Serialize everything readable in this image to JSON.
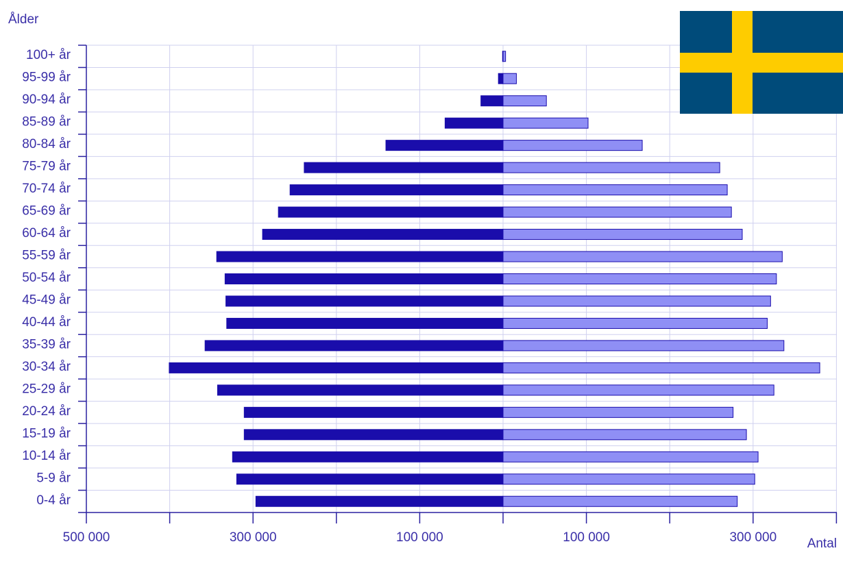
{
  "chart_data": {
    "type": "bar",
    "orientation": "horizontal",
    "subtype": "population-pyramid",
    "ylabel": "Ålder",
    "xlabel": "Antal",
    "categories": [
      "0-4 år",
      "5-9 år",
      "10-14 år",
      "15-19 år",
      "20-24 år",
      "25-29 år",
      "30-34 år",
      "35-39 år",
      "40-44 år",
      "45-49 år",
      "50-54 år",
      "55-59 år",
      "60-64 år",
      "65-69 år",
      "70-74 år",
      "75-79 år",
      "80-84 år",
      "85-89 år",
      "90-94 år",
      "95-99 år",
      "100+ år"
    ],
    "series": [
      {
        "side": "left",
        "color": "#1a0dab",
        "values": [
          297000,
          320000,
          325000,
          311000,
          311000,
          343000,
          401000,
          358000,
          332000,
          333000,
          334000,
          344000,
          289000,
          270000,
          256000,
          239000,
          141000,
          70000,
          27000,
          6000,
          1000
        ]
      },
      {
        "side": "right",
        "color": "#8f8ff5",
        "values": [
          281000,
          302000,
          306000,
          292000,
          276000,
          325000,
          380000,
          337000,
          317000,
          321000,
          328000,
          335000,
          287000,
          274000,
          269000,
          260000,
          167000,
          102000,
          52000,
          16000,
          3000
        ]
      }
    ],
    "xticks": [
      "500 000",
      "300 000",
      "100 000",
      "100 000",
      "300 000"
    ],
    "xlim": [
      -500000,
      400000
    ],
    "grid": true
  },
  "flag": {
    "name": "sweden-flag",
    "blue": "#004b7a",
    "yellow": "#fecc00"
  }
}
